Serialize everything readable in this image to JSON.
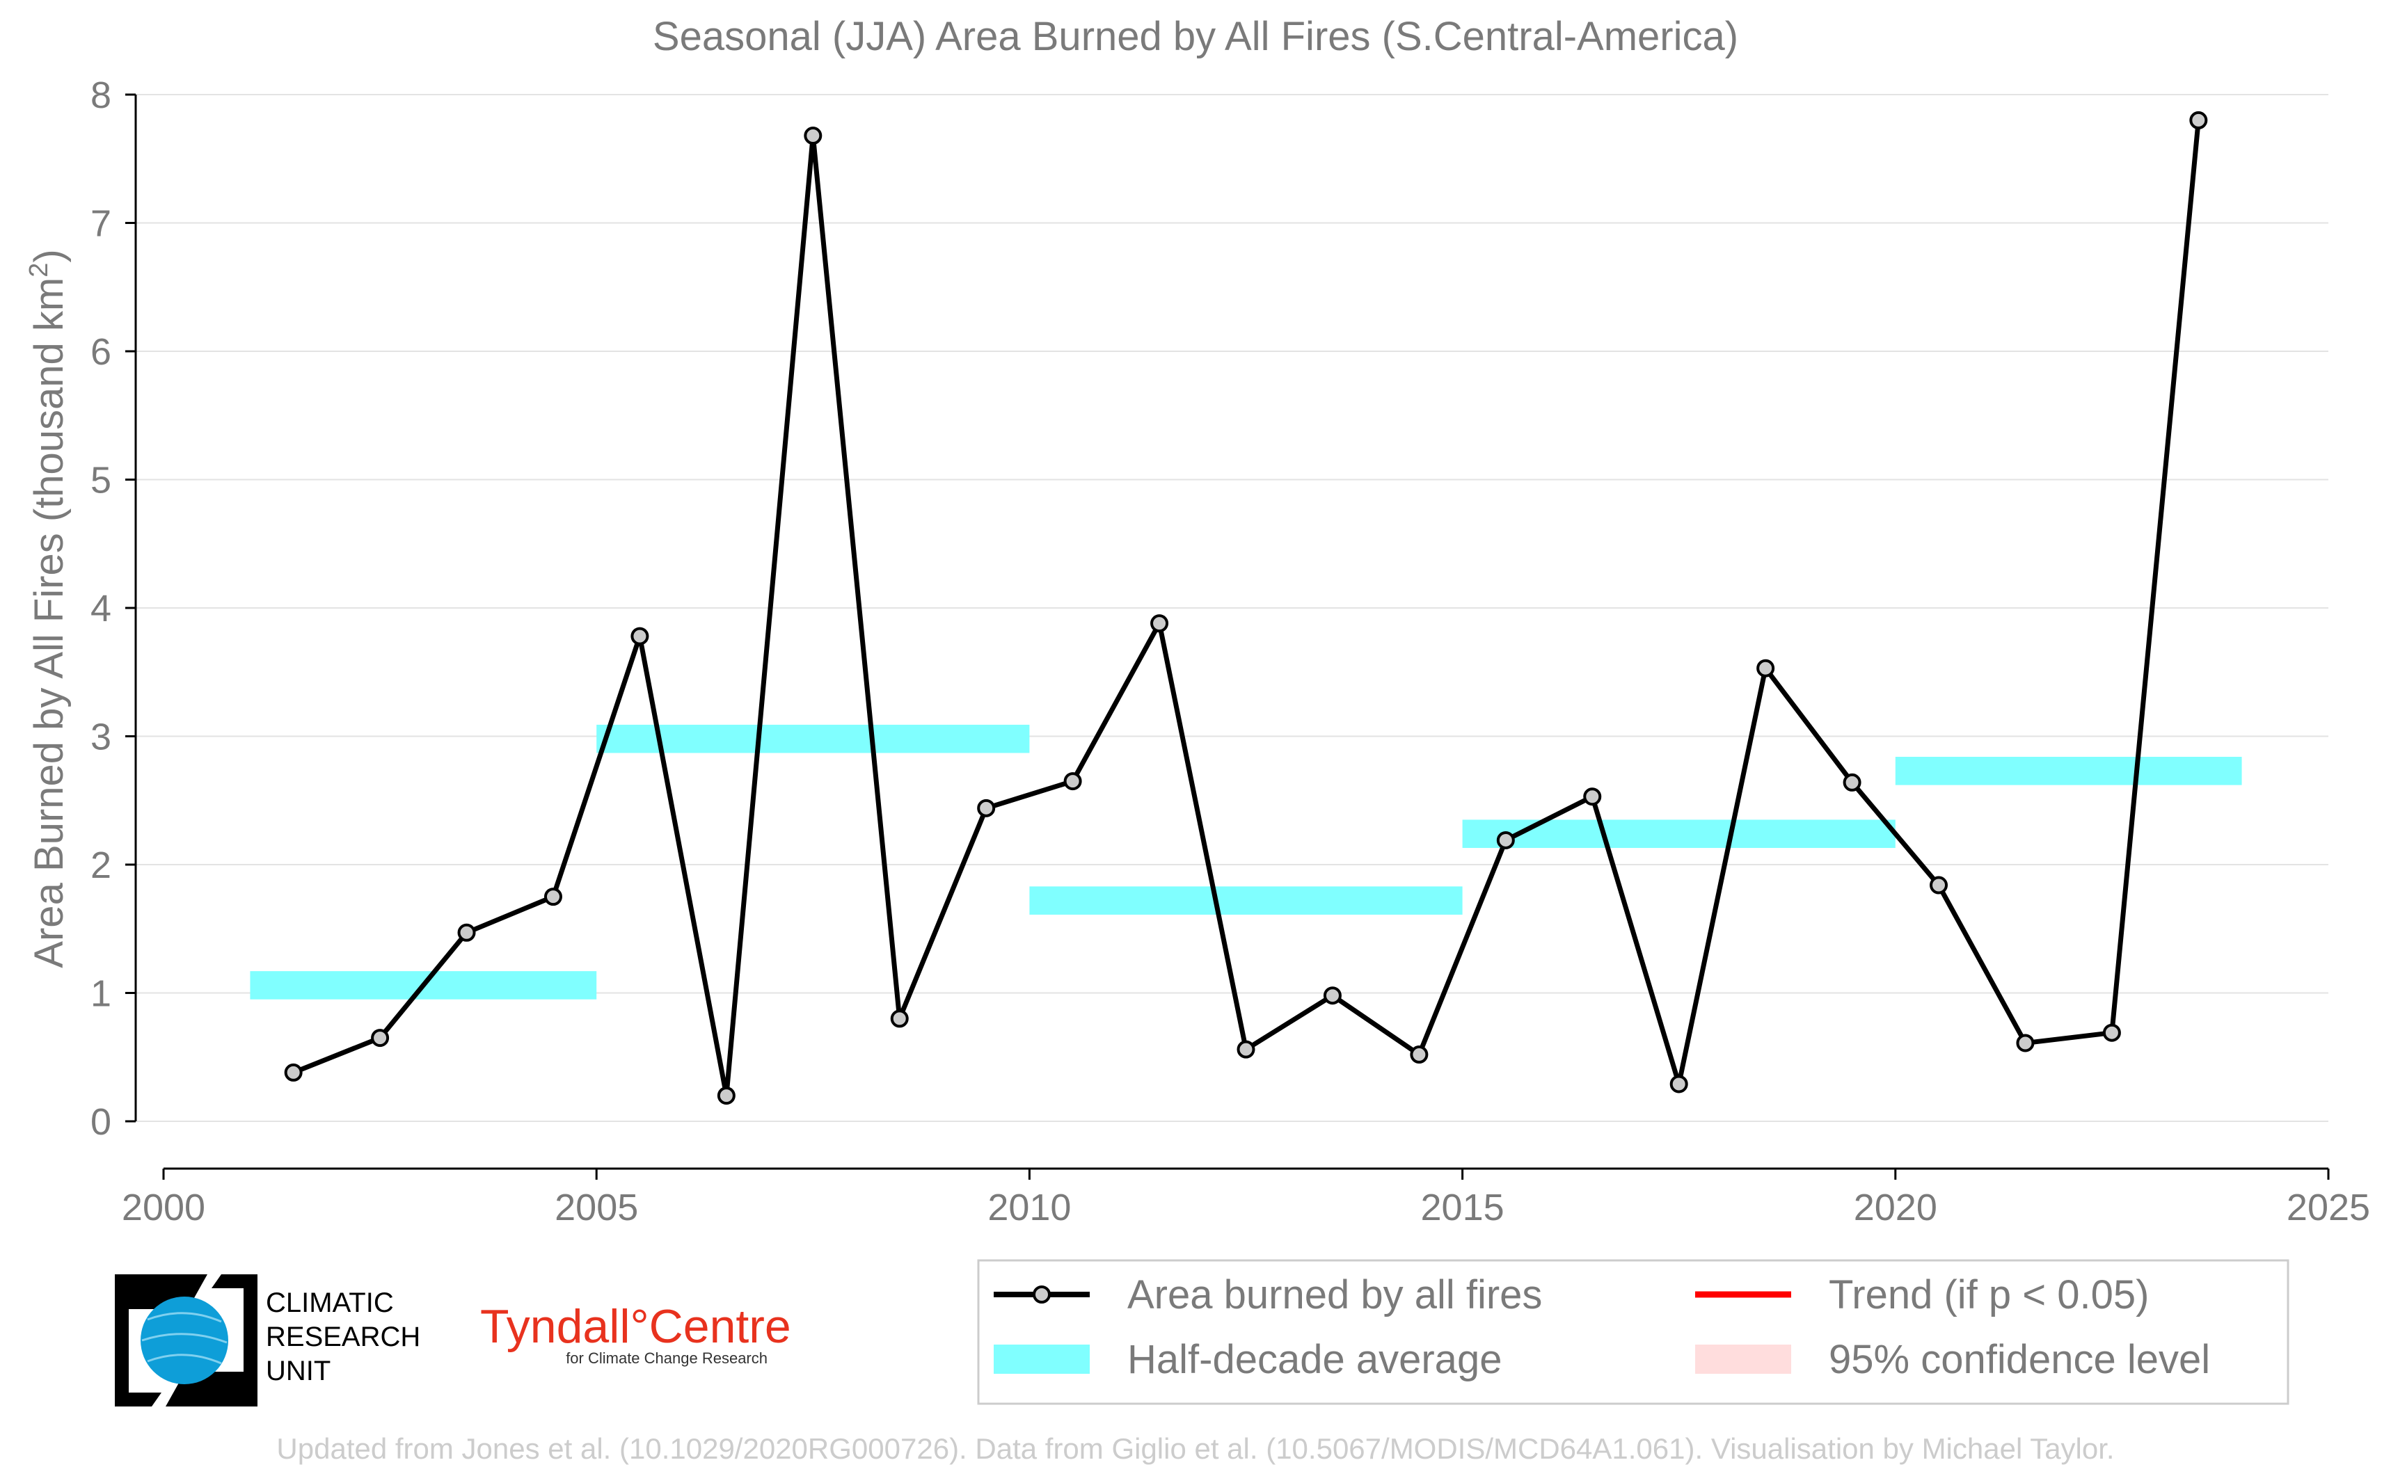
{
  "chart_data": {
    "type": "line",
    "title": "Seasonal (JJA) Area Burned by All Fires (S.Central-America)",
    "ylabel_main": "Area Burned by All Fires (thousand km",
    "ylabel_sup": "2",
    "ylabel_close": ")",
    "xlabel": "",
    "xlim": [
      2000,
      2025
    ],
    "ylim": [
      0,
      8
    ],
    "x_ticks": [
      "2000",
      "2005",
      "2010",
      "2015",
      "2020",
      "2025"
    ],
    "y_ticks": [
      "0",
      "1",
      "2",
      "3",
      "4",
      "5",
      "6",
      "7",
      "8"
    ],
    "grid": "horizontal",
    "series": [
      {
        "name": "Area burned by all fires",
        "color": "#000000",
        "marker_fill": "#cccccc",
        "x": [
          2001.5,
          2002.5,
          2003.5,
          2004.5,
          2005.5,
          2006.5,
          2007.5,
          2008.5,
          2009.5,
          2010.5,
          2011.5,
          2012.5,
          2013.5,
          2014.5,
          2015.5,
          2016.5,
          2017.5,
          2018.5,
          2019.5,
          2020.5,
          2021.5,
          2022.5,
          2023.5
        ],
        "values": [
          0.38,
          0.65,
          1.47,
          1.75,
          3.78,
          0.2,
          7.68,
          0.8,
          2.44,
          2.65,
          3.88,
          0.56,
          0.98,
          0.52,
          2.19,
          2.53,
          0.29,
          3.53,
          2.64,
          1.84,
          0.61,
          0.69,
          7.8
        ]
      }
    ],
    "half_decade_averages": {
      "name": "Half-decade average",
      "color": "#80ffff",
      "segments": [
        {
          "x_start": 2001,
          "x_end": 2005,
          "value": 1.06
        },
        {
          "x_start": 2005,
          "x_end": 2010,
          "value": 2.98
        },
        {
          "x_start": 2010,
          "x_end": 2015,
          "value": 1.72
        },
        {
          "x_start": 2015,
          "x_end": 2020,
          "value": 2.24
        },
        {
          "x_start": 2020,
          "x_end": 2024,
          "value": 2.73
        }
      ]
    },
    "legend": {
      "placement": "bottom-right",
      "entries": [
        {
          "label": "Area burned by all fires",
          "kind": "line-marker",
          "color": "#000000"
        },
        {
          "label": "Trend (if p < 0.05)",
          "kind": "line",
          "color": "#ff0000"
        },
        {
          "label": "Half-decade average",
          "kind": "band",
          "color": "#80ffff"
        },
        {
          "label": "95% confidence level",
          "kind": "band",
          "color": "#ffdddd"
        }
      ]
    }
  },
  "logos": {
    "cru_line1": "CLIMATIC",
    "cru_line2": "RESEARCH",
    "cru_line3": "UNIT",
    "tyndall_main": "Tyndall°Centre",
    "tyndall_sub": "for Climate Change Research"
  },
  "footer": "Updated from Jones et al. (10.1029/2020RG000726). Data from Giglio et al. (10.5067/MODIS/MCD64A1.061). Visualisation by Michael Taylor."
}
